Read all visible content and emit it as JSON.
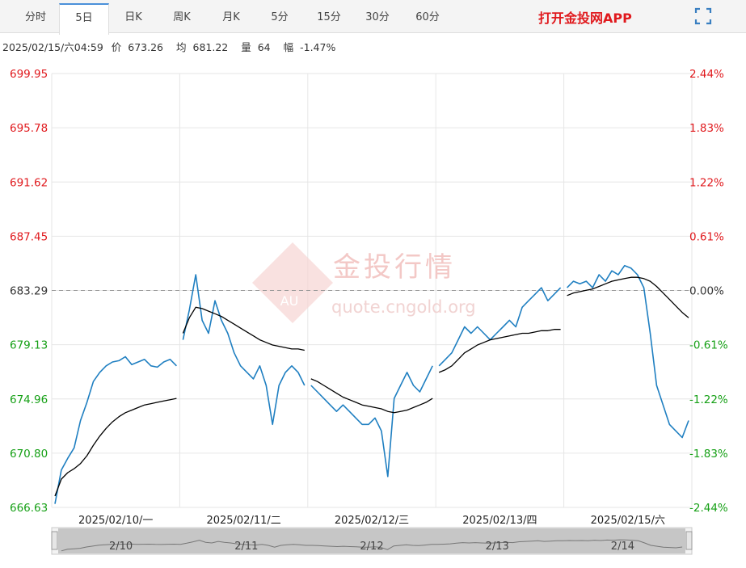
{
  "tabs": [
    {
      "label": "分时",
      "active": false
    },
    {
      "label": "5日",
      "active": true
    },
    {
      "label": "日K",
      "active": false
    },
    {
      "label": "周K",
      "active": false
    },
    {
      "label": "月K",
      "active": false
    },
    {
      "label": "5分",
      "active": false
    },
    {
      "label": "15分",
      "active": false
    },
    {
      "label": "30分",
      "active": false
    },
    {
      "label": "60分",
      "active": false
    }
  ],
  "app_link": "打开金投网APP",
  "fullscreen_icon": "fullscreen-icon",
  "info": {
    "datetime": "2025/02/15/六04:59",
    "price_label": "价",
    "price": "673.26",
    "avg_label": "均",
    "avg": "681.22",
    "volume_label": "量",
    "volume": "64",
    "change_label": "幅",
    "change": "-1.47%"
  },
  "watermark": {
    "brand": "金投行情",
    "logo_text": "AU",
    "url": "quote.cngold.org"
  },
  "colors": {
    "price_line": "#1f7fc1",
    "avg_line": "#000000",
    "up": "#e0191d",
    "down": "#16a016",
    "neutral": "#333333",
    "grid": "#e6e6e6",
    "baseline": "#999999"
  },
  "chart_data": {
    "type": "line",
    "title": "",
    "base_price": 683.29,
    "ylim": [
      666.63,
      699.95
    ],
    "y_ticks_left": [
      "699.95",
      "695.78",
      "691.62",
      "687.45",
      "683.29",
      "679.13",
      "674.96",
      "670.80",
      "666.63"
    ],
    "y_ticks_right": [
      "2.44%",
      "1.83%",
      "1.22%",
      "0.61%",
      "0.00%",
      "-0.61%",
      "-1.22%",
      "-1.83%",
      "-2.44%"
    ],
    "x_ticks": [
      "2025/02/10/一",
      "2025/02/11/二",
      "2025/02/12/三",
      "2025/02/13/四",
      "2025/02/15/六"
    ],
    "navigator_labels": [
      "2/10",
      "2/11",
      "2/12",
      "2/13",
      "2/14"
    ],
    "days": [
      "02/10",
      "02/11",
      "02/12",
      "02/13",
      "02/14"
    ],
    "series": [
      {
        "name": "价",
        "values": [
          [
            666.9,
            669.5,
            670.4,
            671.2,
            673.3,
            674.7,
            676.3,
            677.0,
            677.5,
            677.8,
            677.9,
            678.2,
            677.6,
            677.8,
            678.0,
            677.5,
            677.4,
            677.8,
            678.0,
            677.5
          ],
          [
            679.5,
            681.8,
            684.5,
            681.0,
            680.0,
            682.5,
            681.0,
            680.0,
            678.5,
            677.5,
            677.0,
            676.5,
            677.5,
            676.0,
            673.0,
            676.0,
            677.0,
            677.5,
            677.0,
            676.0
          ],
          [
            676.0,
            675.5,
            675.0,
            674.5,
            674.0,
            674.5,
            674.0,
            673.5,
            673.0,
            673.0,
            673.5,
            672.5,
            669.0,
            675.0,
            676.0,
            677.0,
            676.0,
            675.5,
            676.5,
            677.5
          ],
          [
            677.5,
            678.0,
            678.5,
            679.5,
            680.5,
            680.0,
            680.5,
            680.0,
            679.5,
            680.0,
            680.5,
            681.0,
            680.5,
            682.0,
            682.5,
            683.0,
            683.5,
            682.5,
            683.0,
            683.5
          ],
          [
            683.5,
            684.0,
            683.8,
            684.0,
            683.5,
            684.5,
            684.0,
            684.8,
            684.5,
            685.2,
            685.0,
            684.5,
            683.5,
            680.0,
            676.0,
            674.5,
            673.0,
            672.5,
            672.0,
            673.3
          ]
        ]
      },
      {
        "name": "均",
        "values": [
          [
            667.5,
            668.8,
            669.3,
            669.6,
            670.0,
            670.6,
            671.4,
            672.1,
            672.7,
            673.2,
            673.6,
            673.9,
            674.1,
            674.3,
            674.5,
            674.6,
            674.7,
            674.8,
            674.9,
            675.0
          ],
          [
            680.0,
            681.2,
            682.0,
            681.9,
            681.7,
            681.5,
            681.3,
            681.0,
            680.7,
            680.4,
            680.1,
            679.8,
            679.5,
            679.3,
            679.1,
            679.0,
            678.9,
            678.8,
            678.8,
            678.7
          ],
          [
            676.5,
            676.3,
            676.0,
            675.7,
            675.4,
            675.1,
            674.9,
            674.7,
            674.5,
            674.4,
            674.3,
            674.2,
            674.0,
            673.9,
            674.0,
            674.1,
            674.3,
            674.5,
            674.7,
            675.0
          ],
          [
            677.0,
            677.2,
            677.5,
            678.0,
            678.5,
            678.8,
            679.1,
            679.3,
            679.5,
            679.6,
            679.7,
            679.8,
            679.9,
            680.0,
            680.0,
            680.1,
            680.2,
            680.2,
            680.3,
            680.3
          ],
          [
            682.9,
            683.1,
            683.2,
            683.3,
            683.4,
            683.6,
            683.8,
            684.0,
            684.1,
            684.2,
            684.3,
            684.3,
            684.2,
            684.0,
            683.6,
            683.1,
            682.6,
            682.1,
            681.6,
            681.2
          ]
        ]
      }
    ],
    "grid": true,
    "baseline_dashed": true
  }
}
